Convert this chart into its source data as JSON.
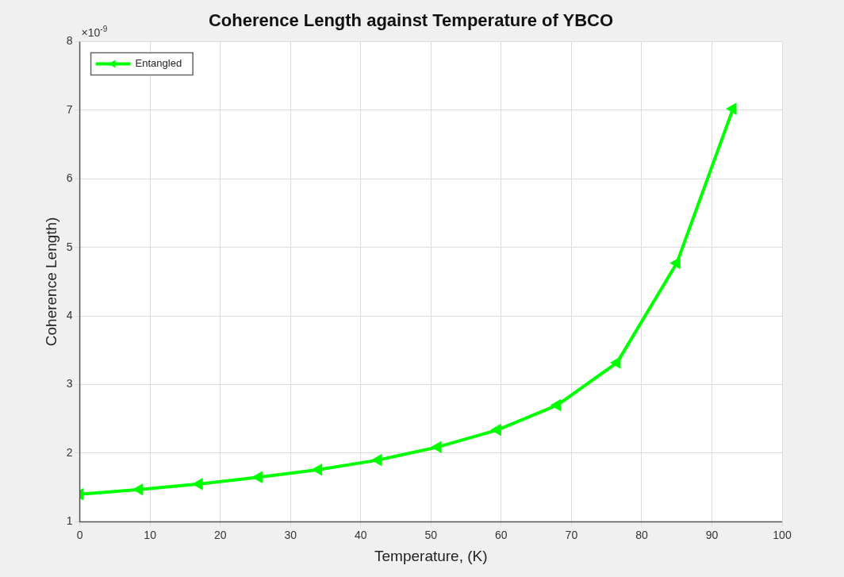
{
  "chart_data": {
    "type": "line",
    "title": "Coherence Length against Temperature of YBCO",
    "xlabel": "Temperature, (K)",
    "ylabel": "Coherence Length)",
    "annotations": [
      "×10$^{-9}$"
    ],
    "x": [
      0,
      8.5,
      17,
      25.5,
      34,
      42.5,
      51,
      59.5,
      68,
      76.5,
      85,
      93
    ],
    "series": [
      {
        "name": "Entangled",
        "color": "#00ff00",
        "values": [
          1.4,
          1.47,
          1.55,
          1.65,
          1.76,
          1.9,
          2.09,
          2.34,
          2.7,
          3.32,
          4.77,
          7.02
        ]
      }
    ],
    "xlim": [
      0,
      100
    ],
    "xticks": [
      0,
      10,
      20,
      30,
      40,
      50,
      60,
      70,
      80,
      90,
      100
    ],
    "ylim": [
      1,
      8
    ],
    "yticks": [
      1,
      2,
      3,
      4,
      5,
      6,
      7,
      8
    ],
    "grid": true,
    "legend": "top left",
    "marker": "triangle",
    "line_style": "solid"
  }
}
